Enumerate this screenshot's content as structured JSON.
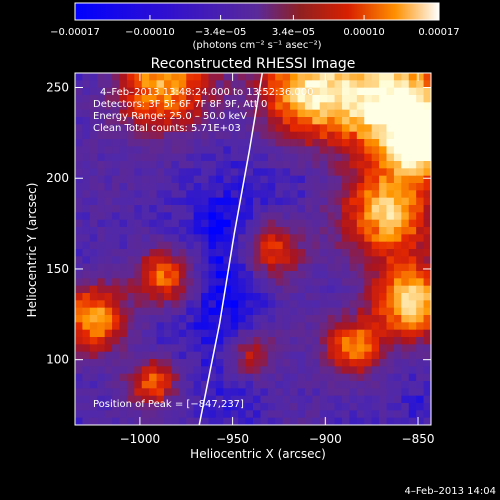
{
  "chart_data": {
    "type": "heatmap",
    "title": "Reconstructed RHESSI Image",
    "xlabel": "Heliocentric X (arcsec)",
    "ylabel": "Heliocentric Y (arcsec)",
    "xlim": [
      -1035,
      -843
    ],
    "ylim": [
      64,
      258
    ],
    "xticks": [
      -1000,
      -950,
      -900,
      -850
    ],
    "yticks": [
      100,
      150,
      200,
      250
    ],
    "xtick_labels": [
      "−1000",
      "−950",
      "−900",
      "−850"
    ],
    "ytick_labels": [
      "100",
      "150",
      "200",
      "250"
    ],
    "colorbar": {
      "range": [
        -0.00017,
        0.00017
      ],
      "ticks": [
        -0.00017,
        -0.0001,
        -3.4e-05,
        3.4e-05,
        0.0001,
        0.00017
      ],
      "tick_labels": [
        "−0.00017",
        "−0.00010",
        "−3.4e−05",
        "3.4e−05",
        "0.00010",
        "0.00017"
      ],
      "label": "(photons cm⁻² s⁻¹ asec⁻²)"
    },
    "annotations": {
      "time": "4–Feb–2013 13:48:24.000 to 13:52:36.000",
      "detectors": "Detectors: 3F 5F 6F 7F 8F 9F, Att 0",
      "energy": "Energy Range: 25.0 – 50.0 keV",
      "clean": "Clean    Total counts: 5.71E+03",
      "peak": "Position of Peak = [−847,237]"
    },
    "limb_curve": [
      [
        -968,
        64
      ],
      [
        -957,
        120
      ],
      [
        -949,
        170
      ],
      [
        -941,
        215
      ],
      [
        -934,
        258
      ]
    ],
    "peak": [
      -847,
      237
    ]
  },
  "footer": {
    "timestamp": "4–Feb–2013 14:04"
  }
}
